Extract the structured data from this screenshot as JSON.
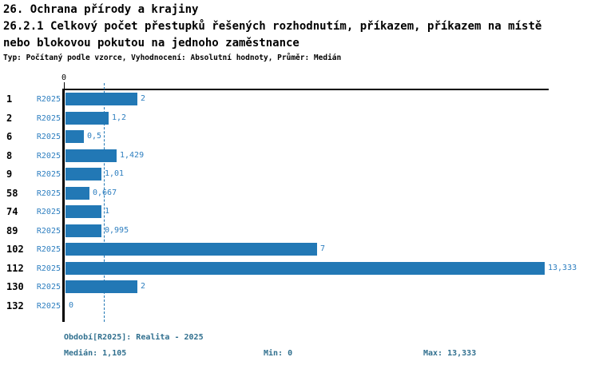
{
  "header": {
    "section_title": "26. Ochrana přírody a krajiny",
    "indicator_title_line1": "26.2.1 Celkový počet přestupků řešených rozhodnutím, příkazem, příkazem na místě",
    "indicator_title_line2": "nebo blokovou pokutou na jednoho zaměstnance",
    "meta_line": "Typ: Počítaný podle vzorce, Vyhodnocení: Absolutní hodnoty, Průměr: Medián"
  },
  "chart_data": {
    "type": "bar",
    "orientation": "horizontal",
    "title": "26.2.1 Celkový počet přestupků řešených rozhodnutím, příkazem, příkazem na místě nebo blokovou pokutou na jednoho zaměstnance",
    "categories": [
      "1",
      "2",
      "6",
      "8",
      "9",
      "58",
      "74",
      "89",
      "102",
      "112",
      "130",
      "132"
    ],
    "series": [
      {
        "name": "R2025",
        "values": [
          2,
          1.2,
          0.5,
          1.429,
          1.01,
          0.667,
          1,
          0.995,
          7,
          13.333,
          2,
          0
        ],
        "value_labels": [
          "2",
          "1,2",
          "0,5",
          "1,429",
          "1,01",
          "0,667",
          "1",
          "0,995",
          "7",
          "13,333",
          "2",
          "0"
        ]
      }
    ],
    "x_axis": {
      "origin_tick_label": "0",
      "xlim": [
        0,
        13.47
      ],
      "grid": "off"
    },
    "median_value": 1.105,
    "legend_position": "none",
    "colors": {
      "bar": "#2278b5",
      "value_label": "#2e7fc0",
      "series_label": "#2e7fc0",
      "category_label": "#000000",
      "median_line": "#2278b5",
      "axis": "#000000"
    }
  },
  "footer": {
    "period_label": "Období[R2025]: Realita - 2025",
    "median_label": "Medián: 1,105",
    "min_label": "Min: 0",
    "max_label": "Max: 13,333",
    "text_color": "#31708f"
  }
}
